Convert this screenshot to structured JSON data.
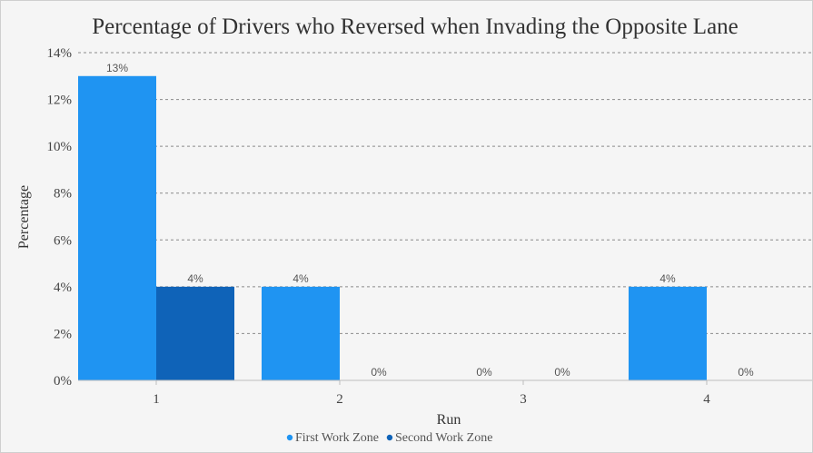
{
  "chart_data": {
    "type": "bar",
    "title": "Percentage of Drivers who Reversed when Invading the Opposite Lane",
    "xlabel": "Run",
    "ylabel": "Percentage",
    "categories": [
      "1",
      "2",
      "3",
      "4"
    ],
    "ylim": [
      0,
      14
    ],
    "yticks": [
      0,
      2,
      4,
      6,
      8,
      10,
      12,
      14
    ],
    "ytick_labels": [
      "0%",
      "2%",
      "4%",
      "6%",
      "8%",
      "10%",
      "12%",
      "14%"
    ],
    "grid": true,
    "legend_position": "bottom",
    "series": [
      {
        "name": "First Work Zone",
        "color": "#1f94f2",
        "values": [
          13,
          4,
          0,
          4
        ],
        "labels": [
          "13%",
          "4%",
          "0%",
          "4%"
        ]
      },
      {
        "name": "Second Work Zone",
        "color": "#0f63b8",
        "values": [
          4,
          0,
          0,
          0
        ],
        "labels": [
          "4%",
          "0%",
          "0%",
          "0%"
        ]
      }
    ]
  }
}
